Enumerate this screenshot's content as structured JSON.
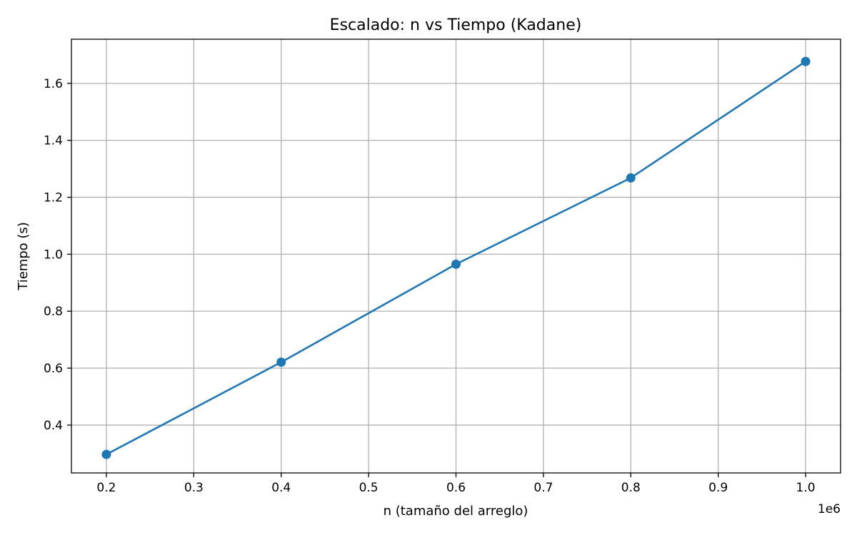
{
  "chart_data": {
    "type": "line",
    "title": "Escalado: n vs Tiempo (Kadane)",
    "xlabel": "n (tamaño del arreglo)",
    "ylabel": "Tiempo (s)",
    "x_offset_label": "1e6",
    "x_scale": 1000000,
    "xlim": [
      160000,
      1040000
    ],
    "ylim": [
      0.232,
      1.755
    ],
    "x_ticks": [
      0.2,
      0.3,
      0.4,
      0.5,
      0.6,
      0.7,
      0.8,
      0.9,
      1.0
    ],
    "x_tick_labels": [
      "0.2",
      "0.3",
      "0.4",
      "0.5",
      "0.6",
      "0.7",
      "0.8",
      "0.9",
      "1.0"
    ],
    "y_ticks": [
      0.4,
      0.6,
      0.8,
      1.0,
      1.2,
      1.4,
      1.6
    ],
    "y_tick_labels": [
      "0.4",
      "0.6",
      "0.8",
      "1.0",
      "1.2",
      "1.4",
      "1.6"
    ],
    "grid": true,
    "series": [
      {
        "color": "#1f77b4",
        "marker": "circle",
        "x": [
          200000,
          400000,
          600000,
          800000,
          1000000
        ],
        "y": [
          0.297,
          0.621,
          0.965,
          1.268,
          1.677
        ]
      }
    ]
  }
}
